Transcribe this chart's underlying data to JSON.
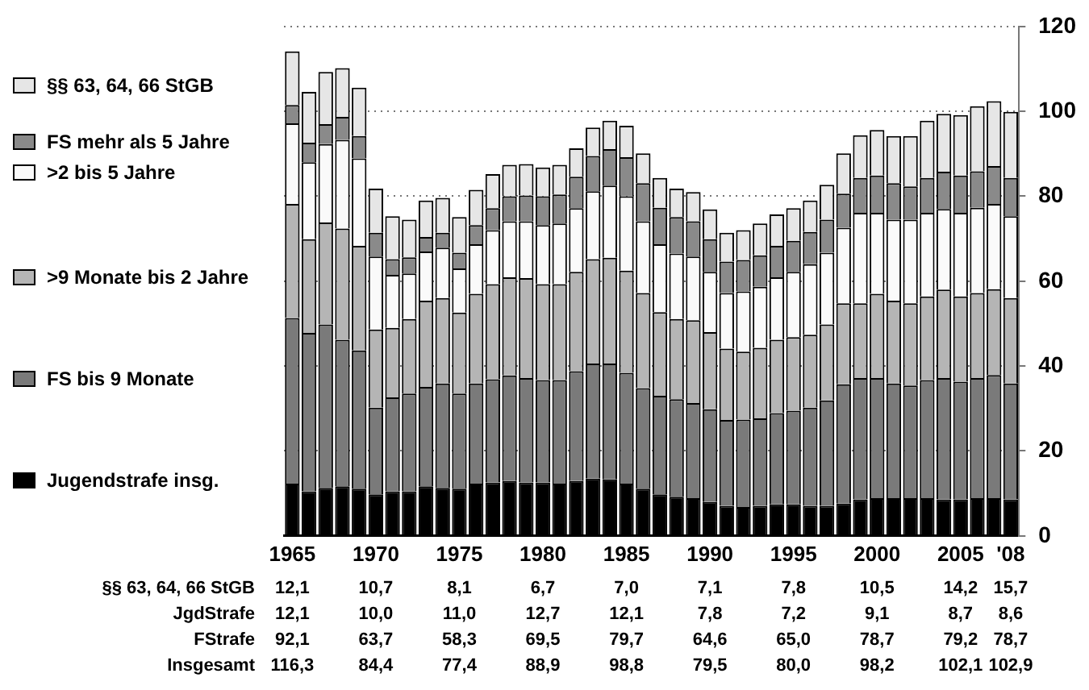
{
  "chart_data": {
    "type": "bar",
    "stacked": true,
    "categories": [
      "1965",
      null,
      null,
      null,
      null,
      "1970",
      null,
      null,
      null,
      null,
      "1975",
      null,
      null,
      null,
      null,
      "1980",
      null,
      null,
      null,
      null,
      "1985",
      null,
      null,
      null,
      null,
      "1990",
      null,
      null,
      null,
      null,
      "1995",
      null,
      null,
      null,
      null,
      "2000",
      null,
      null,
      null,
      null,
      "2005",
      null,
      null,
      "'08"
    ],
    "series": [
      {
        "name": "Jugendstrafe insg.",
        "color": "#000000",
        "values": [
          12.3,
          10.5,
          11.3,
          11.7,
          11.1,
          9.8,
          10.5,
          10.5,
          11.7,
          11.3,
          11.1,
          12.3,
          12.6,
          12.9,
          12.6,
          12.6,
          12.3,
          12.9,
          13.5,
          13.3,
          12.3,
          11.1,
          9.8,
          9.2,
          8.9,
          8.0,
          7.1,
          6.8,
          7.1,
          7.4,
          7.4,
          7.1,
          7.1,
          7.6,
          8.6,
          8.9,
          8.9,
          8.9,
          8.9,
          8.6,
          8.6,
          8.9,
          8.9,
          8.6
        ]
      },
      {
        "name": "FS bis 9 Monate",
        "color": "#7a7a7a",
        "values": [
          39.0,
          37.3,
          38.5,
          34.5,
          32.6,
          20.4,
          22.1,
          23.0,
          23.4,
          24.6,
          22.4,
          23.6,
          24.3,
          24.9,
          24.6,
          24.1,
          24.4,
          25.9,
          27.1,
          27.3,
          26.1,
          23.7,
          23.2,
          23.0,
          22.4,
          21.8,
          20.2,
          20.6,
          20.6,
          21.5,
          22.1,
          23.1,
          24.8,
          28.1,
          28.6,
          28.3,
          27.0,
          26.5,
          27.8,
          28.6,
          27.7,
          28.3,
          29.0,
          27.3
        ]
      },
      {
        "name": ">9 Monate bis 2 Jahre",
        "color": "#b5b5b5",
        "values": [
          26.9,
          22.1,
          24.0,
          26.2,
          24.6,
          18.4,
          16.4,
          17.6,
          20.3,
          20.1,
          19.1,
          21.1,
          22.4,
          23.1,
          23.5,
          22.6,
          22.6,
          23.4,
          24.6,
          24.9,
          24.1,
          22.4,
          19.7,
          18.9,
          19.5,
          18.2,
          16.8,
          16.0,
          16.6,
          17.3,
          17.3,
          17.2,
          17.9,
          19.1,
          17.6,
          19.8,
          19.5,
          19.4,
          19.7,
          20.8,
          20.1,
          20.0,
          20.2,
          20.1
        ]
      },
      {
        "name": ">2 bis 5 Jahre",
        "color": "#fafafa",
        "values": [
          19.0,
          18.1,
          18.5,
          20.9,
          20.6,
          17.2,
          12.5,
          10.7,
          11.6,
          11.9,
          10.4,
          11.7,
          12.7,
          13.2,
          13.4,
          13.9,
          14.3,
          15.0,
          16.0,
          17.0,
          17.5,
          16.9,
          16.0,
          15.4,
          15.0,
          14.2,
          13.1,
          14.2,
          14.4,
          14.7,
          15.4,
          16.6,
          16.9,
          17.8,
          21.3,
          19.1,
          19.1,
          19.7,
          19.7,
          19.0,
          19.7,
          20.1,
          20.1,
          19.3
        ]
      },
      {
        "name": "FS mehr als 5 Jahre",
        "color": "#8a8a8a",
        "values": [
          4.3,
          4.6,
          4.7,
          5.4,
          5.3,
          5.6,
          3.7,
          3.8,
          3.4,
          3.5,
          3.7,
          4.5,
          5.2,
          5.9,
          6.1,
          6.8,
          6.8,
          7.4,
          8.3,
          8.6,
          9.2,
          9.0,
          8.6,
          8.6,
          8.3,
          7.7,
          7.4,
          7.4,
          7.4,
          7.4,
          7.3,
          7.6,
          7.8,
          8.0,
          8.2,
          8.8,
          8.6,
          7.8,
          8.2,
          8.8,
          8.8,
          8.6,
          8.9,
          9.0
        ]
      },
      {
        "name": "§§ 63, 64, 66 StGB",
        "color": "#e6e6e6",
        "values": [
          12.6,
          12.0,
          12.3,
          11.5,
          11.4,
          10.4,
          10.1,
          8.9,
          8.6,
          8.2,
          8.4,
          8.3,
          8.0,
          7.4,
          7.4,
          6.8,
          7.0,
          6.7,
          6.7,
          6.7,
          7.4,
          7.0,
          7.0,
          6.7,
          6.9,
          7.0,
          6.8,
          7.0,
          7.5,
          7.4,
          7.7,
          7.4,
          8.2,
          9.5,
          10.1,
          10.7,
          11.1,
          11.9,
          13.5,
          13.6,
          14.2,
          15.3,
          15.3,
          15.6
        ]
      }
    ],
    "ylim": [
      0,
      120
    ],
    "yticks": [
      0,
      20,
      40,
      60,
      80,
      100,
      120
    ],
    "grid": "y",
    "legend": "left",
    "annotations": [
      "§§ 63, 64, 66 StGB",
      "12,1",
      "10,7",
      "8,1",
      "6,7",
      "7,0",
      "7,1",
      "7,8",
      "10,5",
      "14,2",
      "15,7",
      "JgdStrafe",
      "12,1",
      "10,0",
      "11,0",
      "12,7",
      "12,1",
      "7,8",
      "7,2",
      "9,1",
      "8,7",
      "8,6",
      "FStrafe",
      "92,1",
      "63,7",
      "58,3",
      "69,5",
      "79,7",
      "64,6",
      "65,0",
      "78,7",
      "79,2",
      "78,7",
      "Insgesamt",
      "116,3",
      "84,4",
      "77,4",
      "88,9",
      "98,8",
      "79,5",
      "80,0",
      "98,2",
      "102,1",
      "102,9"
    ]
  }
}
